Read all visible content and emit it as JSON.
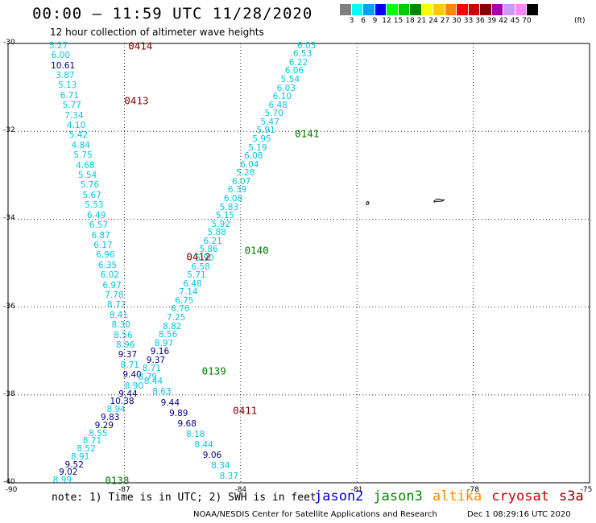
{
  "header": {
    "title": "00:00 – 11:59 UTC 11/28/2020",
    "subtitle": "12 hour collection of altimeter wave heights"
  },
  "legend": {
    "unit": "(ft)",
    "colors": [
      "#808080",
      "#00ffff",
      "#00a0ff",
      "#0000ff",
      "#00ff00",
      "#00cc00",
      "#008800",
      "#ffff00",
      "#ffcc00",
      "#ff8800",
      "#ff0000",
      "#cc0000",
      "#880000",
      "#aa00aa",
      "#cc99ff",
      "#ff88ff",
      "#000000"
    ],
    "labels": [
      "3",
      "6",
      "9",
      "12",
      "15",
      "18",
      "21",
      "24",
      "27",
      "30",
      "33",
      "36",
      "39",
      "42",
      "45",
      "70"
    ]
  },
  "axes": {
    "y_labels": [
      "-30",
      "-32",
      "-34",
      "-36",
      "-38",
      "-40"
    ],
    "x_labels": [
      "-90",
      "-87",
      "-84",
      "-81",
      "-78",
      "-75"
    ]
  },
  "passes": [
    {
      "id": "0414",
      "color": "#7a0000",
      "lon": -86.9,
      "lat": -30.05
    },
    {
      "id": "0413",
      "color": "#7a0000",
      "lon": -87.0,
      "lat": -31.3
    },
    {
      "id": "0141",
      "color": "#007a00",
      "lon": -82.6,
      "lat": -32.05
    },
    {
      "id": "0412",
      "color": "#7a0000",
      "lon": -85.4,
      "lat": -34.85
    },
    {
      "id": "0140",
      "color": "#007a00",
      "lon": -83.9,
      "lat": -34.7
    },
    {
      "id": "0139",
      "color": "#007a00",
      "lon": -85.0,
      "lat": -37.45
    },
    {
      "id": "0411",
      "color": "#7a0000",
      "lon": -84.2,
      "lat": -38.35
    },
    {
      "id": "0138",
      "color": "#007a00",
      "lon": -87.5,
      "lat": -39.95
    }
  ],
  "tracks": {
    "descending_west": {
      "start": [
        -88.7,
        -30.05
      ],
      "end": [
        -86.8,
        -37.55
      ],
      "values": [
        "5.27",
        "6.00",
        "10.61",
        "3.87",
        "5.13",
        "6.71",
        "5.77",
        "7.34",
        "4.10",
        "5.42",
        "4.84",
        "5.75",
        "4.68",
        "5.54",
        "5.76",
        "5.67",
        "5.53",
        "6.49",
        "6.57",
        "6.87",
        "6.17",
        "6.96",
        "6.35",
        "6.02",
        "6.97",
        "7.78",
        "8.77",
        "8.41",
        "8.30",
        "8.56",
        "8.96",
        "9.37",
        "8.71",
        "9.40"
      ],
      "colors": [
        "c",
        "c",
        "n",
        "c",
        "c",
        "c",
        "c",
        "c",
        "c",
        "c",
        "c",
        "c",
        "c",
        "c",
        "c",
        "c",
        "c",
        "c",
        "c",
        "c",
        "c",
        "c",
        "c",
        "c",
        "c",
        "c",
        "c",
        "c",
        "c",
        "c",
        "c",
        "n",
        "c",
        "n"
      ]
    },
    "descending_east": {
      "start": [
        -82.3,
        -30.05
      ],
      "end": [
        -86.4,
        -37.6
      ],
      "values": [
        "6.03",
        "6.53",
        "6.22",
        "6.06",
        "5.54",
        "6.03",
        "6.10",
        "6.48",
        "5.70",
        "5.47",
        "5.91",
        "5.95",
        "5.19",
        "6.08",
        "6.04",
        "5.28",
        "6.07",
        "6.39",
        "6.08",
        "5.83",
        "5.15",
        "5.92",
        "5.88",
        "6.21",
        "5.86",
        "5.90",
        "6.58",
        "5.71",
        "6.48",
        "7.14",
        "6.75",
        "6.76",
        "7.25",
        "8.82",
        "8.56",
        "8.97",
        "9.16",
        "9.37",
        "8.71",
        "8.79"
      ],
      "colors": [
        "c",
        "c",
        "c",
        "c",
        "c",
        "c",
        "c",
        "c",
        "c",
        "c",
        "c",
        "c",
        "c",
        "c",
        "c",
        "c",
        "c",
        "c",
        "c",
        "c",
        "c",
        "c",
        "c",
        "c",
        "c",
        "c",
        "c",
        "c",
        "c",
        "c",
        "c",
        "c",
        "c",
        "c",
        "c",
        "c",
        "n",
        "n",
        "c",
        "c"
      ]
    },
    "southwest_continued": {
      "start": [
        -86.75,
        -37.8
      ],
      "end": [
        -88.6,
        -39.95
      ],
      "values": [
        "8.90",
        "9.44",
        "10.38",
        "8.94",
        "9.83",
        "9.29",
        "8.55",
        "8.71",
        "8.52",
        "8.91",
        "9.52",
        "9.02",
        "8.99"
      ],
      "colors": [
        "c",
        "n",
        "n",
        "c",
        "n",
        "n",
        "c",
        "c",
        "c",
        "c",
        "n",
        "n",
        "c"
      ]
    },
    "southeast_continued": {
      "start": [
        -86.25,
        -37.7
      ],
      "end": [
        -84.3,
        -39.85
      ],
      "values": [
        "8.44",
        "8.63",
        "9.44",
        "9.89",
        "9.68",
        "8.18",
        "8.44",
        "9.06",
        "8.34",
        "8.37"
      ],
      "colors": [
        "c",
        "c",
        "n",
        "n",
        "n",
        "c",
        "c",
        "n",
        "c",
        "c"
      ]
    }
  },
  "footer": {
    "note": "note: 1) Time is in UTC; 2) SWH is in feet",
    "satellites": [
      {
        "name": "jason2",
        "color": "#0000cc"
      },
      {
        "name": "jason3",
        "color": "#008800"
      },
      {
        "name": "altika",
        "color": "#ff8800"
      },
      {
        "name": "cryosat",
        "color": "#cc0000"
      },
      {
        "name": "s3a",
        "color": "#880000"
      }
    ],
    "credit": "NOAA/NESDIS Center for Satellite Applications and Research",
    "generated": "Dec  1 08:29:16 UTC 2020"
  }
}
